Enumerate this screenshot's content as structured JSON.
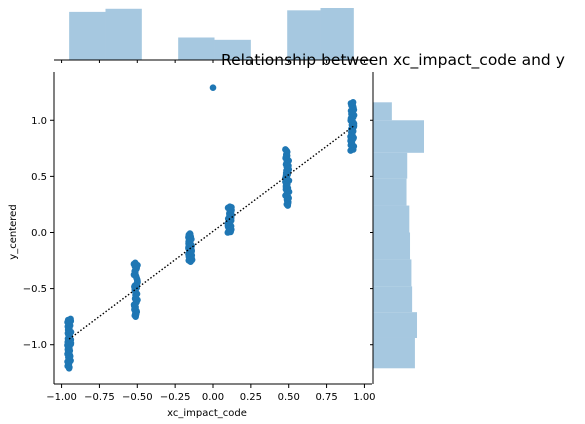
{
  "chart_data": {
    "type": "scatter",
    "title": "Relationship between xc_impact_code and y",
    "xlabel": "xc_impact_code",
    "ylabel": "y_centered",
    "xlim": [
      -1.05,
      1.05
    ],
    "ylim": [
      -1.35,
      1.43
    ],
    "x_ticks": [
      -1.0,
      -0.75,
      -0.5,
      -0.25,
      0.0,
      0.25,
      0.5,
      0.75,
      1.0
    ],
    "x_tick_labels": [
      "−1.00",
      "−0.75",
      "−0.50",
      "−0.25",
      "0.00",
      "0.25",
      "0.50",
      "0.75",
      "1.00"
    ],
    "y_ticks": [
      -1.0,
      -0.5,
      0.0,
      0.5,
      1.0
    ],
    "y_tick_labels": [
      "−1.0",
      "−0.5",
      "0.0",
      "0.5",
      "1.0"
    ],
    "grid": false,
    "colors": {
      "points": "#1f77b4",
      "histogram": "#a6c8e0",
      "trend": "#000000",
      "axis": "#000000"
    },
    "clusters": [
      {
        "x": -0.95,
        "y_min": -1.21,
        "y_max": -0.77
      },
      {
        "x": -0.51,
        "y_min": -0.75,
        "y_max": -0.27
      },
      {
        "x": -0.15,
        "y_min": -0.26,
        "y_max": -0.01
      },
      {
        "x": 0.11,
        "y_min": 0.0,
        "y_max": 0.23
      },
      {
        "x": 0.49,
        "y_min": 0.24,
        "y_max": 0.74
      },
      {
        "x": 0.92,
        "y_min": 0.73,
        "y_max": 1.16
      }
    ],
    "outliers": [
      {
        "x": 0.0,
        "y": 1.29
      }
    ],
    "trend_line": {
      "style": "dotted",
      "x": [
        -0.95,
        0.93
      ],
      "y": [
        -0.95,
        0.95
      ]
    },
    "marginal_x": {
      "bin_edges": [
        -0.95,
        -0.71,
        -0.47,
        -0.23,
        0.01,
        0.25,
        0.49,
        0.71,
        0.93
      ],
      "counts": [
        62,
        66,
        0,
        29,
        26,
        0,
        64,
        67
      ]
    },
    "marginal_y": {
      "bin_edges": [
        -1.21,
        -0.94,
        -0.71,
        -0.48,
        -0.24,
        0.0,
        0.24,
        0.48,
        0.71,
        1.0,
        1.16
      ],
      "counts": [
        60,
        63,
        56,
        55,
        53,
        52,
        48,
        49,
        73,
        27
      ]
    }
  }
}
